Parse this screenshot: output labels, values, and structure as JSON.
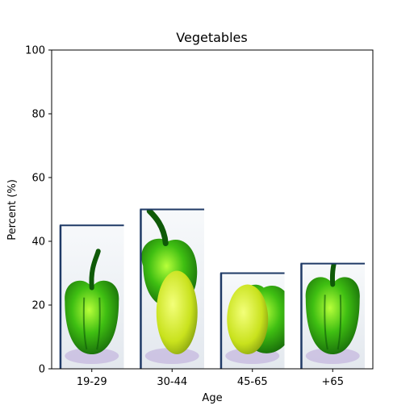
{
  "chart_data": {
    "type": "bar",
    "title": "Vegetables",
    "xlabel": "Age",
    "ylabel": "Percent (%)",
    "categories": [
      "19-29",
      "30-44",
      "45-65",
      "+65"
    ],
    "values": [
      45,
      50,
      30,
      33
    ],
    "ylim": [
      0,
      100
    ],
    "yticks": [
      0,
      20,
      40,
      60,
      80,
      100
    ],
    "grid": false,
    "bar_fill": "pepper-image",
    "colors": {
      "pepper_green": "#2fa80f",
      "pepper_light": "#8ee21c",
      "pepper_dark": "#0f5a08",
      "yellow_vegetable": "#d9ec2a",
      "bar_edge": "#1f3a66",
      "backdrop": "#eef2f6",
      "shadow": "#b9a6d9"
    }
  }
}
